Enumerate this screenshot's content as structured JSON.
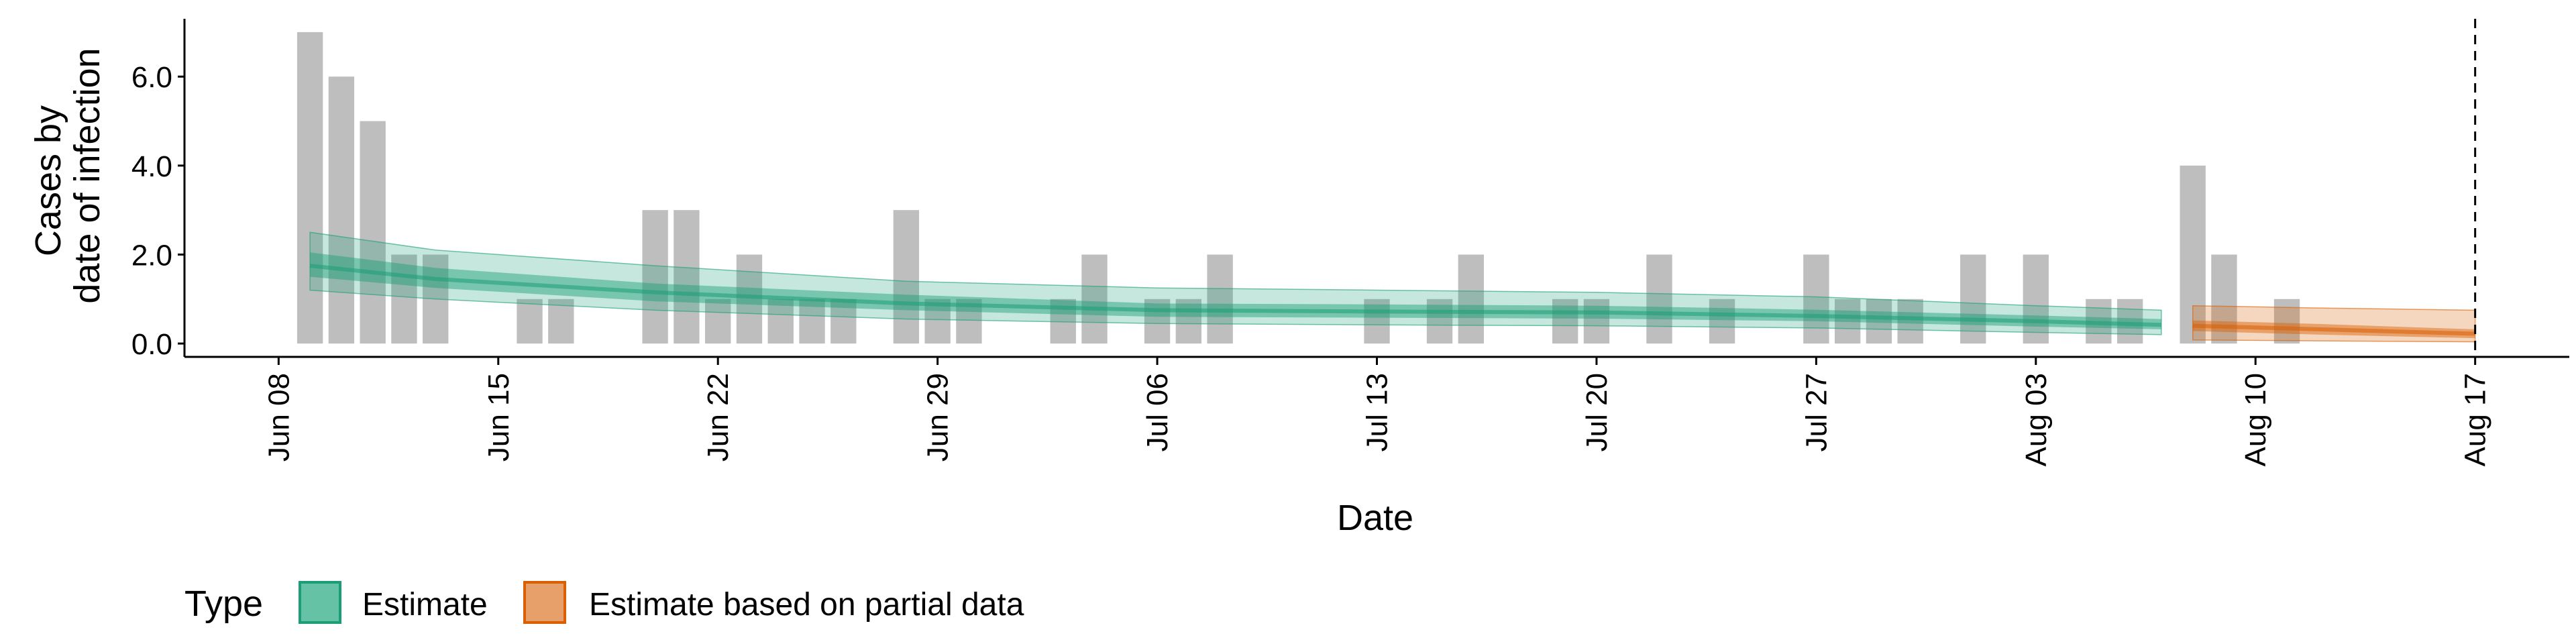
{
  "chart_data": {
    "type": "bar",
    "xlabel": "Date",
    "ylabel_lines": [
      "Cases by",
      "date of infection"
    ],
    "xlim": [
      "2020-06-05",
      "2020-08-20"
    ],
    "ylim": [
      -0.3,
      7.3
    ],
    "y_ticks": [
      0,
      2,
      4,
      6
    ],
    "y_tick_labels": [
      "0.0",
      "2.0",
      "4.0",
      "6.0"
    ],
    "x_ticks": [
      "2020-06-08",
      "2020-06-15",
      "2020-06-22",
      "2020-06-29",
      "2020-07-06",
      "2020-07-13",
      "2020-07-20",
      "2020-07-27",
      "2020-08-03",
      "2020-08-10",
      "2020-08-17"
    ],
    "x_tick_labels": [
      "Jun 08",
      "Jun 15",
      "Jun 22",
      "Jun 29",
      "Jul 06",
      "Jul 13",
      "Jul 20",
      "Jul 27",
      "Aug 03",
      "Aug 10",
      "Aug 17"
    ],
    "grid": false,
    "vline_date": "2020-08-17",
    "bar_color": "#bebebe",
    "bars": [
      {
        "date": "2020-06-09",
        "value": 7
      },
      {
        "date": "2020-06-10",
        "value": 6
      },
      {
        "date": "2020-06-11",
        "value": 5
      },
      {
        "date": "2020-06-12",
        "value": 2
      },
      {
        "date": "2020-06-13",
        "value": 2
      },
      {
        "date": "2020-06-16",
        "value": 1
      },
      {
        "date": "2020-06-17",
        "value": 1
      },
      {
        "date": "2020-06-20",
        "value": 3
      },
      {
        "date": "2020-06-21",
        "value": 3
      },
      {
        "date": "2020-06-22",
        "value": 1
      },
      {
        "date": "2020-06-23",
        "value": 2
      },
      {
        "date": "2020-06-24",
        "value": 1
      },
      {
        "date": "2020-06-25",
        "value": 1
      },
      {
        "date": "2020-06-26",
        "value": 1
      },
      {
        "date": "2020-06-28",
        "value": 3
      },
      {
        "date": "2020-06-29",
        "value": 1
      },
      {
        "date": "2020-06-30",
        "value": 1
      },
      {
        "date": "2020-07-03",
        "value": 1
      },
      {
        "date": "2020-07-04",
        "value": 2
      },
      {
        "date": "2020-07-06",
        "value": 1
      },
      {
        "date": "2020-07-07",
        "value": 1
      },
      {
        "date": "2020-07-08",
        "value": 2
      },
      {
        "date": "2020-07-13",
        "value": 1
      },
      {
        "date": "2020-07-15",
        "value": 1
      },
      {
        "date": "2020-07-16",
        "value": 2
      },
      {
        "date": "2020-07-19",
        "value": 1
      },
      {
        "date": "2020-07-20",
        "value": 1
      },
      {
        "date": "2020-07-22",
        "value": 2
      },
      {
        "date": "2020-07-24",
        "value": 1
      },
      {
        "date": "2020-07-27",
        "value": 2
      },
      {
        "date": "2020-07-28",
        "value": 1
      },
      {
        "date": "2020-07-29",
        "value": 1
      },
      {
        "date": "2020-07-30",
        "value": 1
      },
      {
        "date": "2020-08-01",
        "value": 2
      },
      {
        "date": "2020-08-03",
        "value": 2
      },
      {
        "date": "2020-08-05",
        "value": 1
      },
      {
        "date": "2020-08-06",
        "value": 1
      },
      {
        "date": "2020-08-08",
        "value": 4
      },
      {
        "date": "2020-08-09",
        "value": 2
      },
      {
        "date": "2020-08-11",
        "value": 1
      }
    ],
    "series": [
      {
        "name": "Estimate",
        "color": "#1b9e77",
        "points": [
          {
            "date": "2020-06-09",
            "median": 1.75,
            "lower50": 1.5,
            "upper50": 2.05,
            "lower90": 1.2,
            "upper90": 2.5
          },
          {
            "date": "2020-06-13",
            "median": 1.45,
            "lower50": 1.25,
            "upper50": 1.7,
            "lower90": 1.0,
            "upper90": 2.1
          },
          {
            "date": "2020-06-20",
            "median": 1.15,
            "lower50": 0.95,
            "upper50": 1.35,
            "lower90": 0.75,
            "upper90": 1.75
          },
          {
            "date": "2020-06-28",
            "median": 0.9,
            "lower50": 0.75,
            "upper50": 1.1,
            "lower90": 0.55,
            "upper90": 1.4
          },
          {
            "date": "2020-07-06",
            "median": 0.75,
            "lower50": 0.6,
            "upper50": 0.9,
            "lower90": 0.45,
            "upper90": 1.25
          },
          {
            "date": "2020-07-13",
            "median": 0.72,
            "lower50": 0.58,
            "upper50": 0.88,
            "lower90": 0.42,
            "upper90": 1.2
          },
          {
            "date": "2020-07-20",
            "median": 0.7,
            "lower50": 0.56,
            "upper50": 0.85,
            "lower90": 0.4,
            "upper90": 1.15
          },
          {
            "date": "2020-07-27",
            "median": 0.62,
            "lower50": 0.5,
            "upper50": 0.76,
            "lower90": 0.35,
            "upper90": 1.05
          },
          {
            "date": "2020-08-03",
            "median": 0.5,
            "lower50": 0.38,
            "upper50": 0.63,
            "lower90": 0.25,
            "upper90": 0.85
          },
          {
            "date": "2020-08-07",
            "median": 0.42,
            "lower50": 0.32,
            "upper50": 0.55,
            "lower90": 0.2,
            "upper90": 0.75
          }
        ]
      },
      {
        "name": "Estimate based on partial data",
        "color": "#d95f02",
        "points": [
          {
            "date": "2020-08-08",
            "median": 0.4,
            "lower50": 0.28,
            "upper50": 0.52,
            "lower90": 0.08,
            "upper90": 0.85
          },
          {
            "date": "2020-08-12",
            "median": 0.32,
            "lower50": 0.2,
            "upper50": 0.44,
            "lower90": 0.06,
            "upper90": 0.8
          },
          {
            "date": "2020-08-17",
            "median": 0.22,
            "lower50": 0.12,
            "upper50": 0.32,
            "lower90": 0.04,
            "upper90": 0.75
          }
        ]
      }
    ],
    "legend": {
      "position": "bottom-left",
      "title": "Type",
      "items": [
        {
          "label": "Estimate",
          "fill": "#66c2a5",
          "stroke": "#1b9e77"
        },
        {
          "label": "Estimate based on partial data",
          "fill": "#e8a06a",
          "stroke": "#d95f02"
        }
      ]
    }
  }
}
